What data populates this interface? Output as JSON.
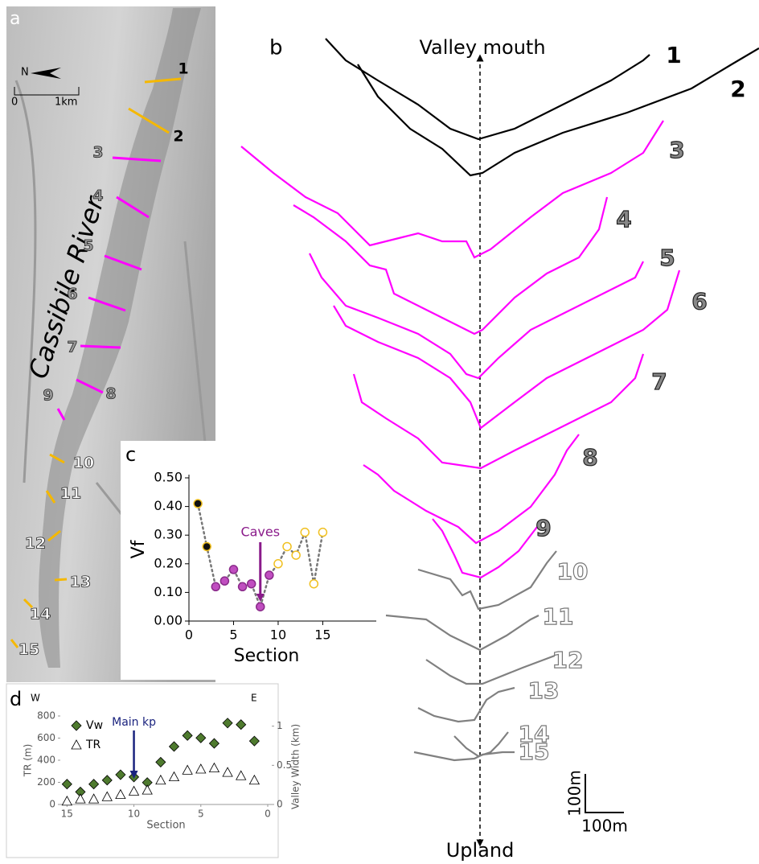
{
  "chart_data": [
    {
      "type": "line",
      "panel": "c",
      "xlabel": "Section",
      "ylabel": "Vf",
      "x": [
        1,
        2,
        3,
        4,
        5,
        6,
        7,
        8,
        9,
        10,
        11,
        12,
        13,
        14,
        15
      ],
      "series": [
        {
          "color": "#777777",
          "values": [
            0.41,
            0.26,
            0.12,
            0.14,
            0.18,
            0.12,
            0.13,
            0.05,
            0.16,
            0.2,
            0.26,
            0.23,
            0.31,
            0.13,
            0.31
          ],
          "marker_fill": [
            "#111111",
            "#111111",
            "#c04ec0",
            "#c04ec0",
            "#c04ec0",
            "#c04ec0",
            "#c04ec0",
            "#c04ec0",
            "#c04ec0",
            "#ffffff",
            "#ffffff",
            "#ffffff",
            "#ffffff",
            "#ffffff",
            "#ffffff"
          ],
          "marker_edge": [
            "#f0c020",
            "#f0c020",
            "#8a2a8a",
            "#8a2a8a",
            "#8a2a8a",
            "#8a2a8a",
            "#8a2a8a",
            "#8a2a8a",
            "#8a2a8a",
            "#f0c020",
            "#f0c020",
            "#f0c020",
            "#f0c020",
            "#f0c020",
            "#f0c020"
          ]
        }
      ],
      "xlim": [
        0,
        21
      ],
      "xticks": [
        0,
        5,
        10,
        15
      ],
      "ylim": [
        0,
        0.5
      ],
      "yticks": [
        {
          "value": 0,
          "label": "0.00"
        },
        {
          "value": 0.1,
          "label": "0.10"
        },
        {
          "value": 0.2,
          "label": "0.20"
        },
        {
          "value": 0.3,
          "label": "0.30"
        },
        {
          "value": 0.4,
          "label": "0.40"
        },
        {
          "value": 0.5,
          "label": "0.50"
        }
      ],
      "annotation": {
        "text": "Caves",
        "x": 8,
        "color": "#8a1a8a"
      }
    },
    {
      "type": "scatter",
      "panel": "d",
      "xlabel": "Section",
      "ylabel": "TR (m)",
      "y2label": "Valley Width (km)",
      "left_corner": "W",
      "right_corner": "E",
      "x": [
        15,
        14,
        13,
        12,
        11,
        10,
        9,
        8,
        7,
        6,
        5,
        4,
        3,
        2,
        1
      ],
      "series": [
        {
          "name": "Vw",
          "color": "#4e7a2e",
          "marker": "diamond",
          "axis": "y2",
          "values": [
            0.26,
            0.16,
            0.26,
            0.31,
            0.38,
            0.35,
            0.28,
            0.54,
            0.74,
            0.88,
            0.85,
            0.78,
            1.04,
            1.02,
            0.81
          ]
        },
        {
          "name": "TR",
          "color": "#ffffff",
          "marker": "triangle",
          "values": [
            30,
            50,
            50,
            70,
            90,
            120,
            130,
            220,
            250,
            310,
            320,
            330,
            290,
            260,
            220
          ]
        }
      ],
      "xlim": [
        15.5,
        -0.3
      ],
      "xticks": [
        15,
        10,
        5,
        0
      ],
      "ylim": [
        0,
        800
      ],
      "yticks": [
        0,
        200,
        400,
        600,
        800
      ],
      "y2lim": [
        0,
        1.13
      ],
      "y2ticks": [
        0,
        0.5,
        1
      ],
      "legend": "upper left",
      "annotation": {
        "text": "Main kp",
        "x": 10,
        "color": "#1a237e"
      }
    }
  ],
  "panel_labels": {
    "a": "a",
    "b": "b"
  },
  "profiles": {
    "top": "Valley mouth",
    "bottom": "Upland",
    "labels": [
      "1",
      "2",
      "3",
      "4",
      "5",
      "6",
      "7",
      "8",
      "9",
      "10",
      "11",
      "12",
      "13",
      "14",
      "15"
    ],
    "colors": [
      "#000000",
      "#000000",
      "#ff00ff",
      "#ff00ff",
      "#ff00ff",
      "#ff00ff",
      "#ff00ff",
      "#ff00ff",
      "#ff00ff",
      "#808080",
      "#808080",
      "#808080",
      "#808080",
      "#808080",
      "#808080"
    ],
    "scale_vertical": "100m",
    "scale_horizontal": "100m"
  },
  "map": {
    "river": "Cassibile River",
    "north": "N",
    "scale_start": "0",
    "scale_end": "1km",
    "sections": [
      "1",
      "2",
      "3",
      "4",
      "5",
      "6",
      "7",
      "8",
      "9",
      "10",
      "11",
      "12",
      "13",
      "14",
      "15"
    ],
    "section_colors": [
      "#f5b800",
      "#f5b800",
      "#ff00ff",
      "#ff00ff",
      "#ff00ff",
      "#ff00ff",
      "#ff00ff",
      "#ff00ff",
      "#ff00ff",
      "#f5b800",
      "#f5b800",
      "#f5b800",
      "#f5b800",
      "#f5b800",
      "#f5b800"
    ]
  }
}
